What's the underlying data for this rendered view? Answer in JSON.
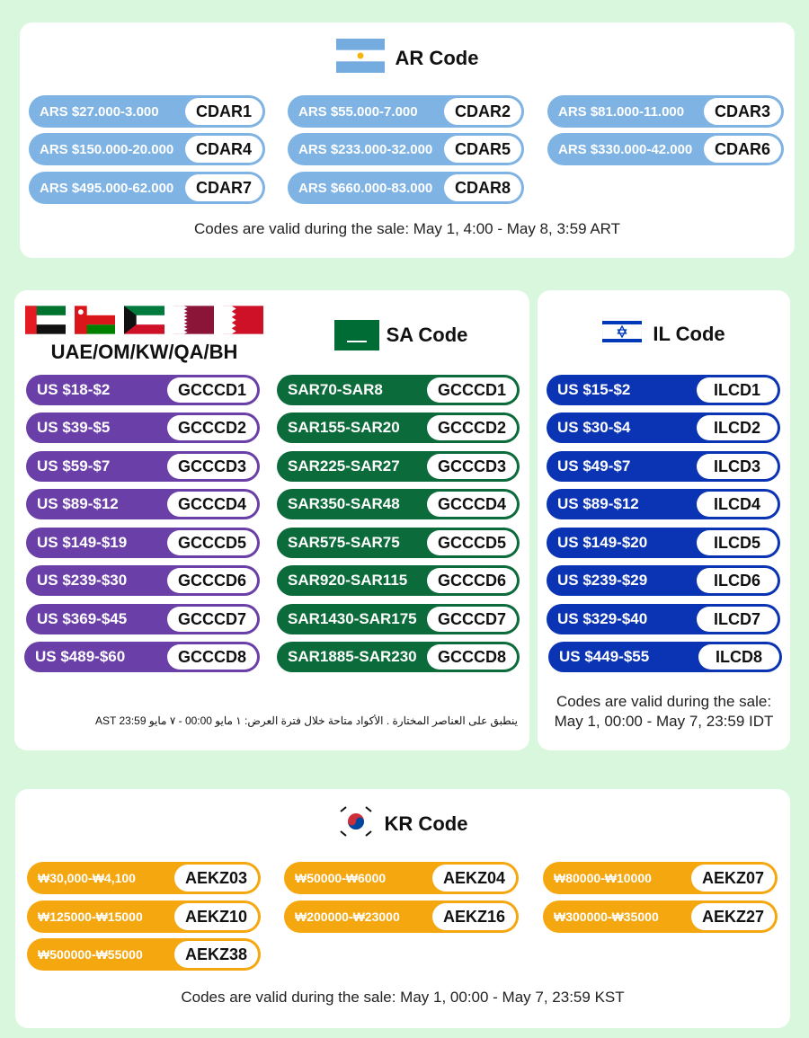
{
  "ar": {
    "title": "AR Code",
    "codes": [
      {
        "range": "ARS $27.000-3.000",
        "code": "CDAR1"
      },
      {
        "range": "ARS $55.000-7.000",
        "code": "CDAR2"
      },
      {
        "range": "ARS $81.000-11.000",
        "code": "CDAR3"
      },
      {
        "range": "ARS $150.000-20.000",
        "code": "CDAR4"
      },
      {
        "range": "ARS $233.000-32.000",
        "code": "CDAR5"
      },
      {
        "range": "ARS $330.000-42.000",
        "code": "CDAR6"
      },
      {
        "range": "ARS $495.000-62.000",
        "code": "CDAR7"
      },
      {
        "range": "ARS $660.000-83.000",
        "code": "CDAR8"
      }
    ],
    "note": "Codes are valid during the sale: May 1, 4:00 - May 8, 3:59 ART"
  },
  "gcc": {
    "region": "UAE/OM/KW/QA/BH",
    "codes": [
      {
        "range": "US $18-$2",
        "code": "GCCCD1"
      },
      {
        "range": "US $39-$5",
        "code": "GCCCD2"
      },
      {
        "range": "US $59-$7",
        "code": "GCCCD3"
      },
      {
        "range": "US $89-$12",
        "code": "GCCCD4"
      },
      {
        "range": "US $149-$19",
        "code": "GCCCD5"
      },
      {
        "range": "US $239-$30",
        "code": "GCCCD6"
      },
      {
        "range": "US $369-$45",
        "code": "GCCCD7"
      },
      {
        "range": "US $489-$60",
        "code": "GCCCD8"
      }
    ]
  },
  "sa": {
    "title": "SA Code",
    "flag_text": "لا إله إلا الله",
    "codes": [
      {
        "range": "SAR70-SAR8",
        "code": "GCCCD1"
      },
      {
        "range": "SAR155-SAR20",
        "code": "GCCCD2"
      },
      {
        "range": "SAR225-SAR27",
        "code": "GCCCD3"
      },
      {
        "range": "SAR350-SAR48",
        "code": "GCCCD4"
      },
      {
        "range": "SAR575-SAR75",
        "code": "GCCCD5"
      },
      {
        "range": "SAR920-SAR115",
        "code": "GCCCD6"
      },
      {
        "range": "SAR1430-SAR175",
        "code": "GCCCD7"
      },
      {
        "range": "SAR1885-SAR230",
        "code": "GCCCD8"
      }
    ],
    "note": "ينطبق على العناصر المختارة . الأكواد متاحة خلال فترة العرض: ١ مايو 00:00 - ٧ مايو AST 23:59"
  },
  "il": {
    "title": "IL Code",
    "codes": [
      {
        "range": "US $15-$2",
        "code": "ILCD1"
      },
      {
        "range": "US $30-$4",
        "code": "ILCD2"
      },
      {
        "range": "US $49-$7",
        "code": "ILCD3"
      },
      {
        "range": "US $89-$12",
        "code": "ILCD4"
      },
      {
        "range": "US $149-$20",
        "code": "ILCD5"
      },
      {
        "range": "US $239-$29",
        "code": "ILCD6"
      },
      {
        "range": "US $329-$40",
        "code": "ILCD7"
      },
      {
        "range": "US $449-$55",
        "code": "ILCD8"
      }
    ],
    "note_line1": "Codes are valid during the sale:",
    "note_line2": "May 1, 00:00 - May 7, 23:59 IDT"
  },
  "kr": {
    "title": "KR Code",
    "codes": [
      {
        "range": "₩30,000-₩4,100",
        "code": "AEKZ03"
      },
      {
        "range": "₩50000-₩6000",
        "code": "AEKZ04"
      },
      {
        "range": "₩80000-₩10000",
        "code": "AEKZ07"
      },
      {
        "range": "₩125000-₩15000",
        "code": "AEKZ10"
      },
      {
        "range": "₩200000-₩23000",
        "code": "AEKZ16"
      },
      {
        "range": "₩300000-₩35000",
        "code": "AEKZ27"
      },
      {
        "range": "₩500000-₩55000",
        "code": "AEKZ38"
      }
    ],
    "note": "Codes are valid during the sale: May 1, 00:00 - May 7, 23:59 KST"
  },
  "colors": {
    "background": "#d9f7dc",
    "ar_pill": "#7eb3e3",
    "gcc_pill": "#6b3fa8",
    "sa_pill": "#0c6b3a",
    "il_pill": "#0b34b4",
    "kr_pill": "#f5a70f"
  }
}
